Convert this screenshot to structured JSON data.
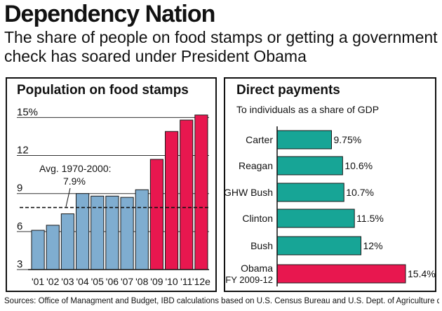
{
  "header": {
    "title": "Dependency Nation",
    "subtitle": "The share of people on food stamps or getting a government check has soared under President Obama"
  },
  "colors": {
    "bush_bar": "#7fadd0",
    "obama_bar": "#e8174f",
    "teal_bar": "#17a596",
    "grid": "#333333",
    "text": "#111111"
  },
  "chart_data": [
    {
      "type": "bar",
      "title": "Population on food stamps",
      "categories": [
        "'01",
        "'02",
        "'03",
        "'04",
        "'05",
        "'06",
        "'07",
        "'08",
        "'09",
        "'10",
        "'11",
        "'12e"
      ],
      "values": [
        6.1,
        6.5,
        7.4,
        9.0,
        8.8,
        8.8,
        8.7,
        9.3,
        11.7,
        13.9,
        14.8,
        15.2
      ],
      "bar_groups": [
        "bush",
        "bush",
        "bush",
        "bush",
        "bush",
        "bush",
        "bush",
        "bush",
        "obama",
        "obama",
        "obama",
        "obama"
      ],
      "yticks": [
        3,
        6,
        9,
        12,
        15
      ],
      "ytick_labels": [
        "3",
        "6",
        "9",
        "12",
        "15%"
      ],
      "ylim": [
        3,
        15.3
      ],
      "reference_line": {
        "value": 7.9,
        "label_line1": "Avg. 1970-2000:",
        "label_line2": "7.9%"
      }
    },
    {
      "type": "bar",
      "orientation": "horizontal",
      "title": "Direct payments",
      "subtitle": "To individuals as a share of GDP",
      "categories": [
        "Carter",
        "Reagan",
        "GHW Bush",
        "Clinton",
        "Bush",
        "Obama"
      ],
      "category_sublabels": [
        "",
        "",
        "",
        "",
        "",
        "FY 2009-12"
      ],
      "values": [
        9.75,
        10.6,
        10.7,
        11.5,
        12,
        15.4
      ],
      "value_labels": [
        "9.75%",
        "10.6%",
        "10.7%",
        "11.5%",
        "12%",
        "15.4%"
      ],
      "highlight": [
        false,
        false,
        false,
        false,
        false,
        true
      ],
      "xlim": [
        5.6,
        15.4
      ]
    }
  ],
  "footnote": "Sources: Office of Managment and Budget, IBD calculations based on U.S. Census Bureau and U.S. Dept. of Agriculture data"
}
